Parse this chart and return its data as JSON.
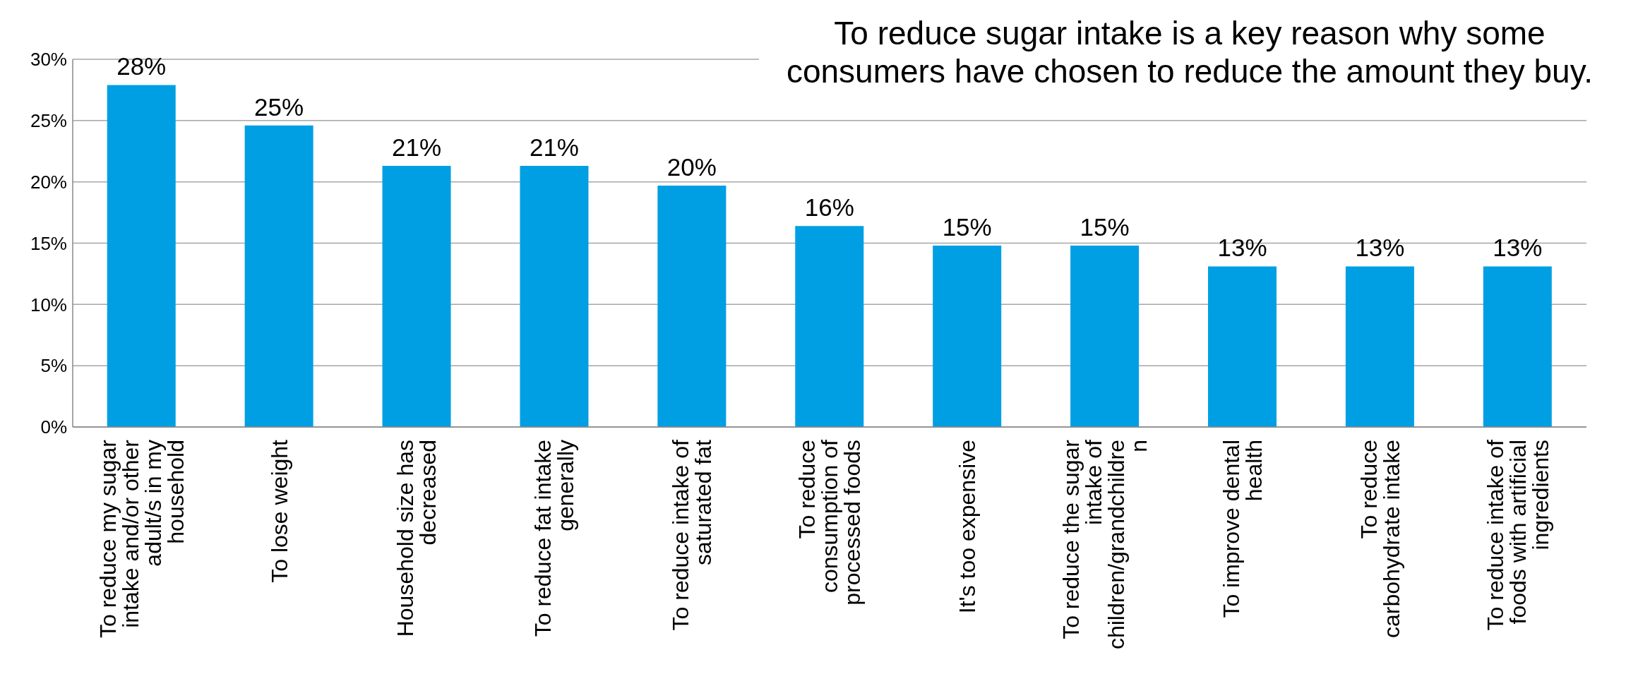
{
  "chart_data": {
    "type": "bar",
    "title": "To reduce sugar intake is a key reason why some consumers have chosen to reduce the amount they buy.",
    "categories": [
      "To reduce my sugar intake and/or other adult/s in my household",
      "To lose weight",
      "Household size has decreased",
      "To reduce fat intake generally",
      "To reduce intake of saturated fat",
      "To reduce consumption of processed foods",
      "It's too expensive",
      "To reduce the sugar intake of children/grandchildren",
      "To improve dental health",
      "To reduce carbohydrate intake",
      "To reduce intake of foods with artificial ingredients"
    ],
    "values": [
      27.9,
      24.6,
      21.3,
      21.3,
      19.7,
      16.4,
      14.8,
      14.8,
      13.1,
      13.1,
      13.1
    ],
    "value_labels": [
      "28%",
      "25%",
      "21%",
      "21%",
      "20%",
      "16%",
      "15%",
      "15%",
      "13%",
      "13%",
      "13%"
    ],
    "color": "#009fe3",
    "ylim": [
      0,
      30
    ],
    "yticks": [
      {
        "value": 0,
        "label": "0%"
      },
      {
        "value": 5,
        "label": "5%"
      },
      {
        "value": 10,
        "label": "10%"
      },
      {
        "value": 15,
        "label": "15%"
      },
      {
        "value": 20,
        "label": "20%"
      },
      {
        "value": 25,
        "label": "25%"
      },
      {
        "value": 30,
        "label": "30%"
      }
    ],
    "grid": "y",
    "legend": false
  }
}
